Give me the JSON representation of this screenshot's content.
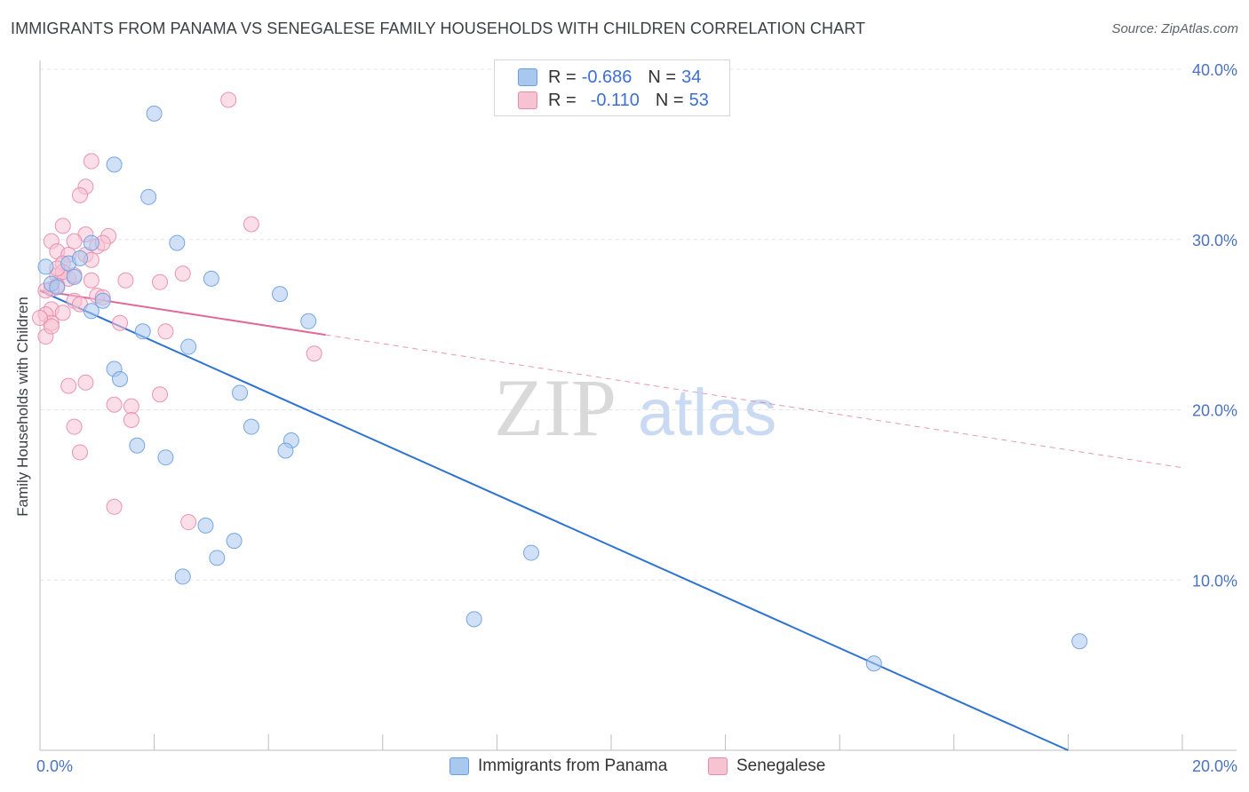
{
  "header": {
    "title": "IMMIGRANTS FROM PANAMA VS SENEGALESE FAMILY HOUSEHOLDS WITH CHILDREN CORRELATION CHART",
    "source": "Source: ZipAtlas.com"
  },
  "watermark": {
    "zip": "ZIP",
    "atlas": "atlas"
  },
  "legend": {
    "rows": [
      {
        "r_label": "R =",
        "r_value": "-0.686",
        "n_label": "N =",
        "n_value": "34",
        "color": "#a9c8f0",
        "border": "#6a9de0"
      },
      {
        "r_label": "R =",
        "r_value": "-0.110",
        "n_label": "N =",
        "n_value": "53",
        "color": "#f7c3d3",
        "border": "#e88aaa"
      }
    ]
  },
  "chart_data": {
    "type": "scatter",
    "title": "IMMIGRANTS FROM PANAMA VS SENEGALESE FAMILY HOUSEHOLDS WITH CHILDREN CORRELATION CHART",
    "xlabel": "",
    "ylabel": "Family Households with Children",
    "xlim": [
      0,
      20
    ],
    "ylim": [
      0,
      40
    ],
    "x_tick_labels": [
      "0.0%",
      "20.0%"
    ],
    "y_ticks": [
      10,
      20,
      30,
      40
    ],
    "y_tick_labels": [
      "10.0%",
      "20.0%",
      "30.0%",
      "40.0%"
    ],
    "grid": true,
    "series": [
      {
        "name": "Immigrants from Panama",
        "color": "#a9c8f0",
        "stroke": "#6a9de0",
        "trend_color": "#2f73d1",
        "trend": {
          "x": [
            0,
            18
          ],
          "y": [
            27.0,
            0.0
          ]
        },
        "points": [
          [
            0.1,
            28.4
          ],
          [
            0.2,
            27.4
          ],
          [
            0.3,
            27.2
          ],
          [
            0.5,
            28.6
          ],
          [
            0.6,
            27.8
          ],
          [
            0.7,
            28.9
          ],
          [
            0.9,
            29.8
          ],
          [
            1.1,
            26.4
          ],
          [
            0.9,
            25.8
          ],
          [
            1.3,
            34.4
          ],
          [
            2.0,
            37.4
          ],
          [
            1.9,
            32.5
          ],
          [
            2.4,
            29.8
          ],
          [
            3.0,
            27.7
          ],
          [
            4.2,
            26.8
          ],
          [
            4.7,
            25.2
          ],
          [
            1.8,
            24.6
          ],
          [
            2.6,
            23.7
          ],
          [
            1.3,
            22.4
          ],
          [
            1.4,
            21.8
          ],
          [
            3.5,
            21.0
          ],
          [
            3.7,
            19.0
          ],
          [
            4.4,
            18.2
          ],
          [
            4.3,
            17.6
          ],
          [
            1.7,
            17.9
          ],
          [
            2.2,
            17.2
          ],
          [
            2.9,
            13.2
          ],
          [
            3.4,
            12.3
          ],
          [
            3.1,
            11.3
          ],
          [
            2.5,
            10.2
          ],
          [
            8.6,
            11.6
          ],
          [
            7.6,
            7.7
          ],
          [
            14.6,
            5.1
          ],
          [
            18.2,
            6.4
          ]
        ]
      },
      {
        "name": "Senegalese",
        "color": "#f7c3d3",
        "stroke": "#e88aaa",
        "trend_color": "#e0699a",
        "trend": {
          "x": [
            0,
            5
          ],
          "y": [
            27.0,
            24.4
          ]
        },
        "trend_ext": {
          "x": [
            5,
            20
          ],
          "y": [
            24.4,
            16.6
          ]
        },
        "points": [
          [
            3.3,
            38.2
          ],
          [
            0.9,
            34.6
          ],
          [
            0.8,
            33.1
          ],
          [
            0.7,
            32.6
          ],
          [
            3.7,
            30.9
          ],
          [
            0.4,
            30.8
          ],
          [
            0.8,
            30.3
          ],
          [
            1.2,
            30.2
          ],
          [
            0.2,
            29.9
          ],
          [
            0.6,
            29.9
          ],
          [
            1.0,
            29.6
          ],
          [
            0.3,
            29.3
          ],
          [
            0.5,
            29.1
          ],
          [
            0.8,
            29.1
          ],
          [
            0.4,
            28.6
          ],
          [
            2.5,
            28.0
          ],
          [
            0.3,
            27.9
          ],
          [
            0.5,
            27.7
          ],
          [
            0.9,
            27.6
          ],
          [
            1.5,
            27.6
          ],
          [
            2.1,
            27.5
          ],
          [
            0.3,
            27.3
          ],
          [
            0.2,
            27.1
          ],
          [
            0.1,
            27.0
          ],
          [
            1.0,
            26.7
          ],
          [
            0.6,
            26.4
          ],
          [
            0.2,
            25.9
          ],
          [
            0.1,
            25.6
          ],
          [
            0.2,
            25.1
          ],
          [
            1.4,
            25.1
          ],
          [
            2.2,
            24.6
          ],
          [
            0.1,
            24.3
          ],
          [
            4.8,
            23.3
          ],
          [
            0.8,
            21.6
          ],
          [
            0.5,
            21.4
          ],
          [
            2.1,
            20.9
          ],
          [
            1.3,
            20.3
          ],
          [
            1.6,
            20.2
          ],
          [
            1.6,
            19.4
          ],
          [
            0.6,
            19.0
          ],
          [
            0.7,
            17.5
          ],
          [
            1.3,
            14.3
          ],
          [
            2.6,
            13.4
          ],
          [
            0.4,
            28.1
          ],
          [
            0.3,
            28.3
          ],
          [
            1.1,
            29.8
          ],
          [
            0.6,
            27.9
          ],
          [
            0.9,
            28.8
          ],
          [
            0.2,
            24.9
          ],
          [
            1.1,
            26.6
          ],
          [
            0.0,
            25.4
          ],
          [
            0.7,
            26.2
          ],
          [
            0.4,
            25.7
          ]
        ]
      }
    ]
  },
  "bottom_legend": {
    "items": [
      {
        "label": "Immigrants from Panama",
        "color": "#a9c8f0",
        "border": "#6a9de0"
      },
      {
        "label": "Senegalese",
        "color": "#f7c3d3",
        "border": "#e88aaa"
      }
    ]
  }
}
